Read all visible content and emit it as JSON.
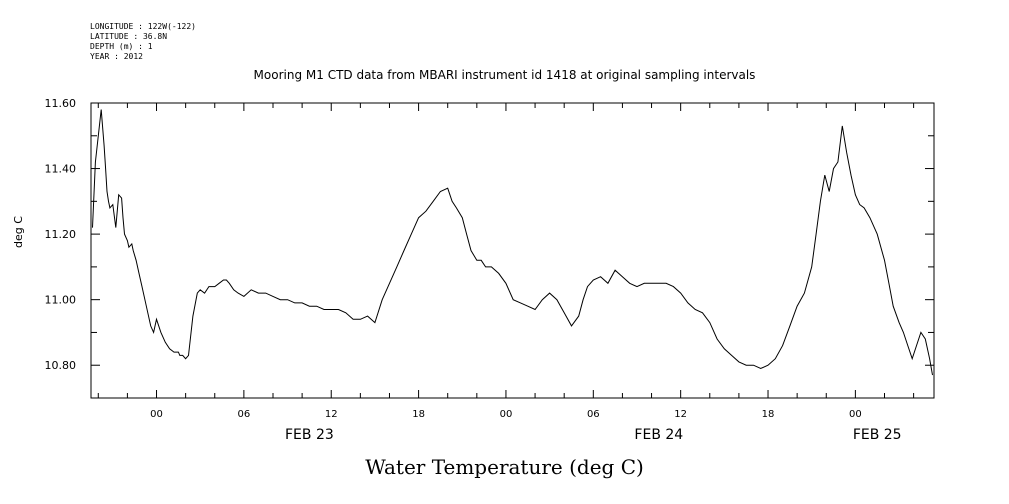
{
  "meta_lines": [
    "LONGITUDE : 122W(-122)",
    "LATITUDE : 36.8N",
    "DEPTH (m) : 1",
    "YEAR : 2012"
  ],
  "chart_data": {
    "type": "line",
    "title": "Mooring M1 CTD data from MBARI instrument id 1418 at original sampling intervals",
    "xlabel": "Water Temperature (deg C)",
    "ylabel": "deg C",
    "ylim": [
      10.7,
      11.6
    ],
    "y_ticks": [
      "11.60",
      "11.40",
      "11.20",
      "11.00",
      "10.80"
    ],
    "y_tick_values": [
      11.6,
      11.4,
      11.2,
      11.0,
      10.8
    ],
    "xlim_hours": [
      -4.5,
      53.4
    ],
    "x_tick_labels": [
      "00",
      "06",
      "12",
      "18",
      "00",
      "06",
      "12",
      "18",
      "00"
    ],
    "x_tick_hours": [
      0,
      6,
      12,
      18,
      24,
      30,
      36,
      42,
      48
    ],
    "date_labels": [
      "FEB 23",
      "FEB 24",
      "FEB 25"
    ],
    "date_label_hours": [
      10.5,
      34.5,
      49.5
    ],
    "grid": false,
    "series": [
      {
        "x": [
          -4.4,
          -4.2,
          -4.0,
          -3.8,
          -3.6,
          -3.5,
          -3.4,
          -3.3,
          -3.2,
          -3.0,
          -2.8,
          -2.6,
          -2.4,
          -2.3,
          -2.2,
          -2.0,
          -1.9,
          -1.7,
          -1.6,
          -1.4,
          -1.2,
          -1.0,
          -0.8,
          -0.6,
          -0.4,
          -0.2,
          0.0,
          0.3,
          0.6,
          0.9,
          1.2,
          1.5,
          1.6,
          1.8,
          2.0,
          2.2,
          2.5,
          2.8,
          3.0,
          3.3,
          3.6,
          4.0,
          4.3,
          4.6,
          4.8,
          5.0,
          5.3,
          5.6,
          6.0,
          6.5,
          7.0,
          7.5,
          8.0,
          8.5,
          9.0,
          9.5,
          10.0,
          10.5,
          11.0,
          11.5,
          12.0,
          12.5,
          13.0,
          13.5,
          14.0,
          14.5,
          15.0,
          15.5,
          16.0,
          16.5,
          17.0,
          17.5,
          18.0,
          18.5,
          19.0,
          19.5,
          20.0,
          20.3,
          20.6,
          21.0,
          21.3,
          21.6,
          22.0,
          22.3,
          22.6,
          23.0,
          23.5,
          24.0,
          24.5,
          25.0,
          25.5,
          26.0,
          26.5,
          27.0,
          27.5,
          28.0,
          28.5,
          29.0,
          29.3,
          29.6,
          30.0,
          30.5,
          31.0,
          31.5,
          32.0,
          32.5,
          33.0,
          33.5,
          34.0,
          34.5,
          35.0,
          35.5,
          36.0,
          36.5,
          37.0,
          37.5,
          38.0,
          38.5,
          39.0,
          39.5,
          40.0,
          40.5,
          41.0,
          41.5,
          42.0,
          42.5,
          43.0,
          43.5,
          44.0,
          44.5,
          45.0,
          45.3,
          45.6,
          45.9,
          46.2,
          46.5,
          46.8,
          47.1,
          47.4,
          47.7,
          48.0,
          48.3,
          48.6,
          49.0,
          49.5,
          50.0,
          50.3,
          50.6,
          51.0,
          51.3,
          51.6,
          51.9,
          52.2,
          52.5,
          52.8,
          53.1,
          53.3
        ],
        "values": [
          11.22,
          11.42,
          11.5,
          11.58,
          11.47,
          11.4,
          11.33,
          11.3,
          11.28,
          11.29,
          11.22,
          11.32,
          11.31,
          11.25,
          11.2,
          11.18,
          11.16,
          11.17,
          11.15,
          11.12,
          11.08,
          11.04,
          11.0,
          10.96,
          10.92,
          10.9,
          10.94,
          10.9,
          10.87,
          10.85,
          10.84,
          10.84,
          10.83,
          10.83,
          10.82,
          10.83,
          10.95,
          11.02,
          11.03,
          11.02,
          11.04,
          11.04,
          11.05,
          11.06,
          11.06,
          11.05,
          11.03,
          11.02,
          11.01,
          11.03,
          11.02,
          11.02,
          11.01,
          11.0,
          11.0,
          10.99,
          10.99,
          10.98,
          10.98,
          10.97,
          10.97,
          10.97,
          10.96,
          10.94,
          10.94,
          10.95,
          10.93,
          11.0,
          11.05,
          11.1,
          11.15,
          11.2,
          11.25,
          11.27,
          11.3,
          11.33,
          11.34,
          11.3,
          11.28,
          11.25,
          11.2,
          11.15,
          11.12,
          11.12,
          11.1,
          11.1,
          11.08,
          11.05,
          11.0,
          10.99,
          10.98,
          10.97,
          11.0,
          11.02,
          11.0,
          10.96,
          10.92,
          10.95,
          11.0,
          11.04,
          11.06,
          11.07,
          11.05,
          11.09,
          11.07,
          11.05,
          11.04,
          11.05,
          11.05,
          11.05,
          11.05,
          11.04,
          11.02,
          10.99,
          10.97,
          10.96,
          10.93,
          10.88,
          10.85,
          10.83,
          10.81,
          10.8,
          10.8,
          10.79,
          10.8,
          10.82,
          10.86,
          10.92,
          10.98,
          11.02,
          11.1,
          11.2,
          11.3,
          11.38,
          11.33,
          11.4,
          11.42,
          11.53,
          11.45,
          11.38,
          11.32,
          11.29,
          11.28,
          11.25,
          11.2,
          11.12,
          11.05,
          10.98,
          10.93,
          10.9,
          10.86,
          10.82,
          10.86,
          10.9,
          10.88,
          10.82,
          10.77
        ]
      }
    ]
  }
}
